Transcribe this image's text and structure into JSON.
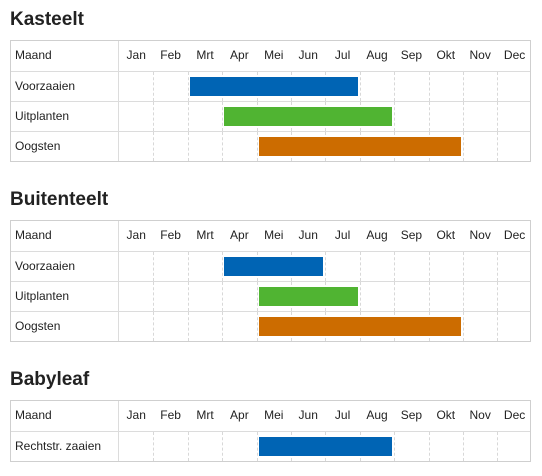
{
  "header_label": "Maand",
  "months": [
    "Jan",
    "Feb",
    "Mrt",
    "Apr",
    "Mei",
    "Jun",
    "Jul",
    "Aug",
    "Sep",
    "Okt",
    "Nov",
    "Dec"
  ],
  "colors": {
    "voorzaaien": "#0064b4",
    "uitplanten": "#50b432",
    "oogsten": "#cc6c00",
    "grid": "#d8d8d8",
    "border": "#cfcfcf"
  },
  "sections": [
    {
      "title": "Kasteelt",
      "rows": [
        {
          "label": "Voorzaaien",
          "start": "Mrt",
          "end": "Jul",
          "color_key": "voorzaaien"
        },
        {
          "label": "Uitplanten",
          "start": "Apr",
          "end": "Aug",
          "color_key": "uitplanten"
        },
        {
          "label": "Oogsten",
          "start": "Mei",
          "end": "Okt",
          "color_key": "oogsten"
        }
      ]
    },
    {
      "title": "Buitenteelt",
      "rows": [
        {
          "label": "Voorzaaien",
          "start": "Apr",
          "end": "Jun",
          "color_key": "voorzaaien"
        },
        {
          "label": "Uitplanten",
          "start": "Mei",
          "end": "Jul",
          "color_key": "uitplanten"
        },
        {
          "label": "Oogsten",
          "start": "Mei",
          "end": "Okt",
          "color_key": "oogsten"
        }
      ]
    },
    {
      "title": "Babyleaf",
      "rows": [
        {
          "label": "Rechtstr. zaaien",
          "start": "Mei",
          "end": "Aug",
          "color_key": "voorzaaien"
        }
      ]
    }
  ]
}
